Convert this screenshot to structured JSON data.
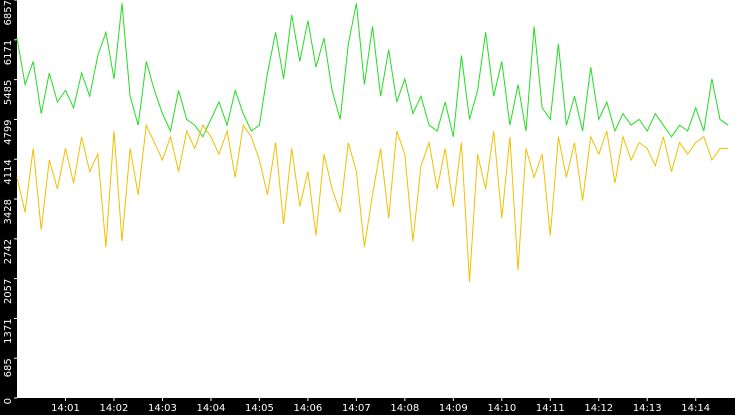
{
  "chart_data": {
    "type": "line",
    "categories": [
      null,
      null,
      null,
      null,
      null,
      null,
      "14:01",
      null,
      null,
      null,
      null,
      null,
      "14:02",
      null,
      null,
      null,
      null,
      null,
      "14:03",
      null,
      null,
      null,
      null,
      null,
      "14:04",
      null,
      null,
      null,
      null,
      null,
      "14:05",
      null,
      null,
      null,
      null,
      null,
      "14:06",
      null,
      null,
      null,
      null,
      null,
      "14:07",
      null,
      null,
      null,
      null,
      null,
      "14:08",
      null,
      null,
      null,
      null,
      null,
      "14:09",
      null,
      null,
      null,
      null,
      null,
      "14:10",
      null,
      null,
      null,
      null,
      null,
      "14:11",
      null,
      null,
      null,
      null,
      null,
      "14:12",
      null,
      null,
      null,
      null,
      null,
      "14:13",
      null,
      null,
      null,
      null,
      null,
      "14:14",
      null,
      null,
      null,
      null
    ],
    "series": [
      {
        "color": "#22dd22",
        "values": [
          6200,
          5400,
          5800,
          4900,
          5600,
          5100,
          5300,
          5000,
          5600,
          5200,
          5900,
          6300,
          5500,
          6800,
          5200,
          4700,
          5800,
          5300,
          4900,
          4600,
          5300,
          4800,
          4700,
          4500,
          4800,
          5100,
          4700,
          5300,
          4900,
          4600,
          4700,
          5600,
          6300,
          5500,
          6600,
          5800,
          6500,
          5700,
          6200,
          5300,
          4800,
          6100,
          6800,
          5400,
          6400,
          5200,
          6000,
          5100,
          5500,
          4900,
          5200,
          4700,
          4600,
          5100,
          4500,
          5900,
          4800,
          5300,
          6300,
          5200,
          5800,
          4700,
          5400,
          4600,
          6400,
          5000,
          4800,
          6100,
          4700,
          5200,
          4600,
          5700,
          4800,
          5100,
          4600,
          4900,
          4700,
          4800,
          4600,
          4900,
          4700,
          4500,
          4700,
          4600,
          5000,
          4600,
          5500,
          4800,
          4700
        ]
      },
      {
        "color": "#f0c000",
        "values": [
          3800,
          3200,
          4300,
          2900,
          4100,
          3600,
          4300,
          3700,
          4500,
          3900,
          4200,
          2600,
          4600,
          2700,
          4300,
          3500,
          4700,
          4400,
          4100,
          4500,
          3900,
          4600,
          4300,
          4700,
          4500,
          4200,
          4600,
          3800,
          4700,
          4500,
          4100,
          3500,
          4400,
          3000,
          4300,
          3300,
          3900,
          2800,
          4200,
          3600,
          3200,
          4400,
          3900,
          2600,
          3500,
          4300,
          3100,
          4600,
          4200,
          2700,
          4000,
          4400,
          3600,
          4300,
          3300,
          4400,
          2000,
          4200,
          3600,
          4600,
          3100,
          4500,
          2200,
          4300,
          3800,
          4200,
          2800,
          4500,
          3800,
          4400,
          3400,
          4500,
          4200,
          4600,
          3700,
          4500,
          4100,
          4400,
          4300,
          4000,
          4500,
          3900,
          4400,
          4200,
          4400,
          4500,
          4100,
          4300,
          4300
        ]
      }
    ],
    "ylim": [
      0,
      6857
    ],
    "yticks": [
      0,
      685,
      1371,
      2057,
      2742,
      3428,
      4114,
      4799,
      5485,
      6171,
      6857
    ]
  }
}
